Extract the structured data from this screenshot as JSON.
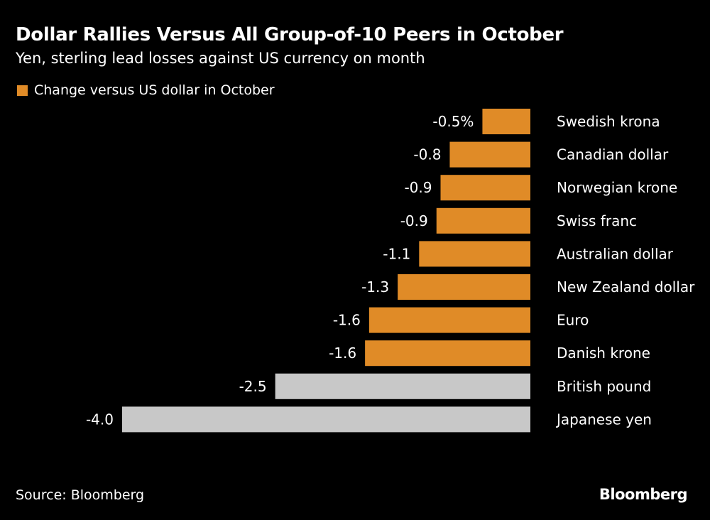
{
  "title": "Dollar Rallies Versus All Group-of-10 Peers in October",
  "subtitle": "Yen, sterling lead losses against US currency on month",
  "source": "Source: Bloomberg",
  "logo": "Bloomberg",
  "colors": {
    "orange": "#E08B27",
    "gray": "#C8C8C8",
    "background": "#000000"
  },
  "chart_data": {
    "type": "bar",
    "orientation": "horizontal",
    "legend": {
      "label": "Change versus US dollar in October",
      "placement": "top-left"
    },
    "categories": [
      "Swedish krona",
      "Canadian dollar",
      "Norwegian krone",
      "Swiss franc",
      "Australian dollar",
      "New Zealand dollar",
      "Euro",
      "Danish krone",
      "British pound",
      "Japanese yen"
    ],
    "values": [
      -0.47,
      -0.79,
      -0.88,
      -0.92,
      -1.09,
      -1.3,
      -1.58,
      -1.62,
      -2.5,
      -4.0
    ],
    "data_labels": [
      "-0.5%",
      "-0.8",
      "-0.9",
      "-0.9",
      "-1.1",
      "-1.3",
      "-1.6",
      "-1.6",
      "-2.5",
      "-4.0"
    ],
    "highlight": [
      false,
      false,
      false,
      false,
      false,
      false,
      false,
      false,
      true,
      true
    ],
    "unit": "%",
    "xlim": [
      -4.0,
      0
    ],
    "grid": false
  }
}
